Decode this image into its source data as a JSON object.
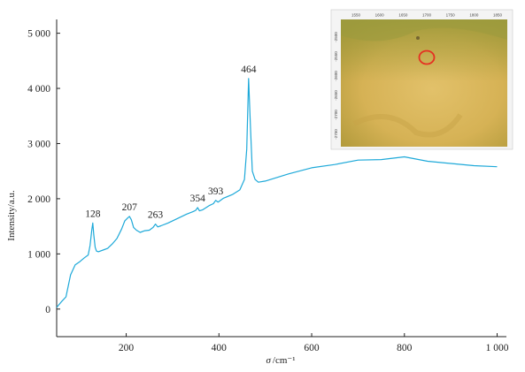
{
  "chart_data": {
    "type": "line",
    "xlabel_symbol": "σ",
    "xlabel_unit": "/cm⁻¹",
    "ylabel": "Intensity/a.u.",
    "xlim": [
      50,
      1020
    ],
    "ylim": [
      -500,
      5250
    ],
    "x_ticks": [
      200,
      400,
      600,
      800,
      1000
    ],
    "x_tick_labels": [
      "200",
      "400",
      "600",
      "800",
      "1 000"
    ],
    "y_ticks": [
      0,
      1000,
      2000,
      3000,
      4000,
      5000
    ],
    "y_tick_labels": [
      "0",
      "1 000",
      "2 000",
      "3 000",
      "4 000",
      "5 000"
    ],
    "grid": false,
    "colors": {
      "line": "#1ea9d9",
      "axis": "#222222",
      "marker_circle": "#e53022"
    },
    "series": [
      {
        "x": [
          50,
          60,
          70,
          80,
          90,
          100,
          110,
          118,
          122,
          126,
          128,
          130,
          133,
          136,
          140,
          150,
          160,
          170,
          180,
          190,
          197,
          203,
          207,
          211,
          216,
          222,
          230,
          240,
          250,
          258,
          263,
          268,
          275,
          290,
          310,
          330,
          345,
          350,
          354,
          358,
          365,
          380,
          388,
          393,
          398,
          410,
          430,
          445,
          455,
          460,
          464,
          468,
          472,
          478,
          485,
          500,
          550,
          600,
          650,
          700,
          750,
          800,
          850,
          900,
          950,
          1000
        ],
        "y": [
          30,
          130,
          220,
          620,
          800,
          860,
          930,
          980,
          1150,
          1450,
          1560,
          1350,
          1120,
          1050,
          1040,
          1070,
          1100,
          1180,
          1280,
          1450,
          1600,
          1650,
          1680,
          1620,
          1480,
          1430,
          1390,
          1420,
          1430,
          1480,
          1540,
          1490,
          1510,
          1560,
          1640,
          1720,
          1770,
          1790,
          1840,
          1780,
          1800,
          1880,
          1910,
          1970,
          1940,
          2010,
          2080,
          2160,
          2350,
          2900,
          4180,
          3300,
          2500,
          2350,
          2300,
          2320,
          2450,
          2560,
          2620,
          2700,
          2710,
          2760,
          2680,
          2640,
          2600,
          2580
        ]
      }
    ],
    "annotations": [
      {
        "x": 128,
        "y": 1560,
        "text": "128"
      },
      {
        "x": 207,
        "y": 1680,
        "text": "207"
      },
      {
        "x": 263,
        "y": 1540,
        "text": "263"
      },
      {
        "x": 354,
        "y": 1840,
        "text": "354"
      },
      {
        "x": 393,
        "y": 1970,
        "text": "393"
      },
      {
        "x": 464,
        "y": 4180,
        "text": "464"
      }
    ],
    "inset": {
      "x_tick_labels": [
        "1550",
        "1600",
        "1650",
        "1700",
        "1750",
        "1800",
        "1850"
      ],
      "y_tick_labels": [
        "-2500",
        "-2550",
        "-2600",
        "-2650",
        "-2700",
        "-2750"
      ]
    }
  }
}
